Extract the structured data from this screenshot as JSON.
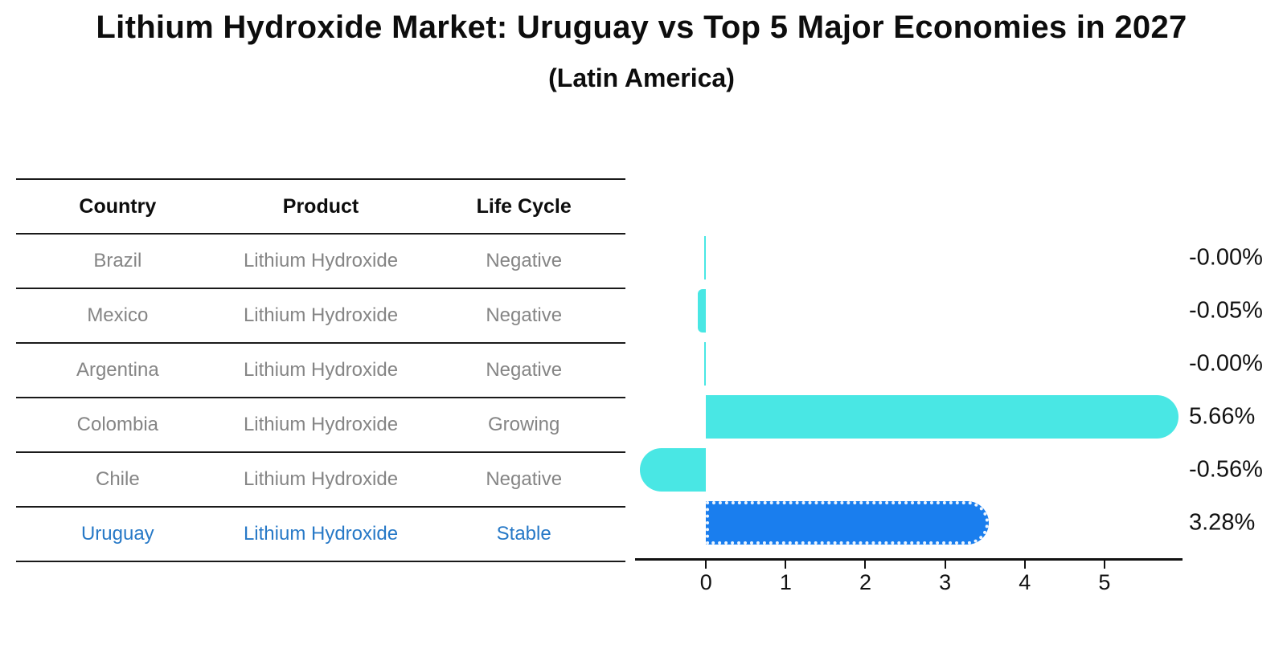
{
  "title": "Lithium Hydroxide Market: Uruguay vs Top 5 Major Economies in 2027",
  "subtitle": "(Latin America)",
  "table": {
    "columns": [
      "Country",
      "Product",
      "Life Cycle"
    ],
    "rows": [
      {
        "country": "Brazil",
        "product": "Lithium Hydroxide",
        "life_cycle": "Negative",
        "highlight": false
      },
      {
        "country": "Mexico",
        "product": "Lithium Hydroxide",
        "life_cycle": "Negative",
        "highlight": false
      },
      {
        "country": "Argentina",
        "product": "Lithium Hydroxide",
        "life_cycle": "Negative",
        "highlight": false
      },
      {
        "country": "Colombia",
        "product": "Lithium Hydroxide",
        "life_cycle": "Growing",
        "highlight": false
      },
      {
        "country": "Chile",
        "product": "Lithium Hydroxide",
        "life_cycle": "Negative",
        "highlight": false
      },
      {
        "country": "Uruguay",
        "product": "Lithium Hydroxide",
        "life_cycle": "Stable",
        "highlight": true
      }
    ]
  },
  "chart_data": {
    "type": "bar",
    "orientation": "horizontal",
    "title": "Lithium Hydroxide Market: Uruguay vs Top 5 Major Economies in 2027 (Latin America)",
    "xlabel": "",
    "ylabel": "",
    "categories": [
      "Brazil",
      "Mexico",
      "Argentina",
      "Colombia",
      "Chile",
      "Uruguay"
    ],
    "values": [
      -0.0,
      -0.05,
      -0.0,
      5.66,
      -0.56,
      3.28
    ],
    "value_labels": [
      "-0.00%",
      "-0.05%",
      "-0.00%",
      "5.66%",
      "-0.56%",
      "3.28%"
    ],
    "x_ticks": [
      0,
      1,
      2,
      3,
      4,
      5
    ],
    "xlim": [
      -0.89,
      5.98
    ],
    "grid": false,
    "legend": "none",
    "highlight_index": 5
  },
  "colors": {
    "bar_default": "#49E7E4",
    "bar_highlight": "#1A7EEE",
    "row_text": "#858585",
    "highlight_text": "#2779C7",
    "header_text": "#0d0d0d",
    "axis": "#111111"
  }
}
